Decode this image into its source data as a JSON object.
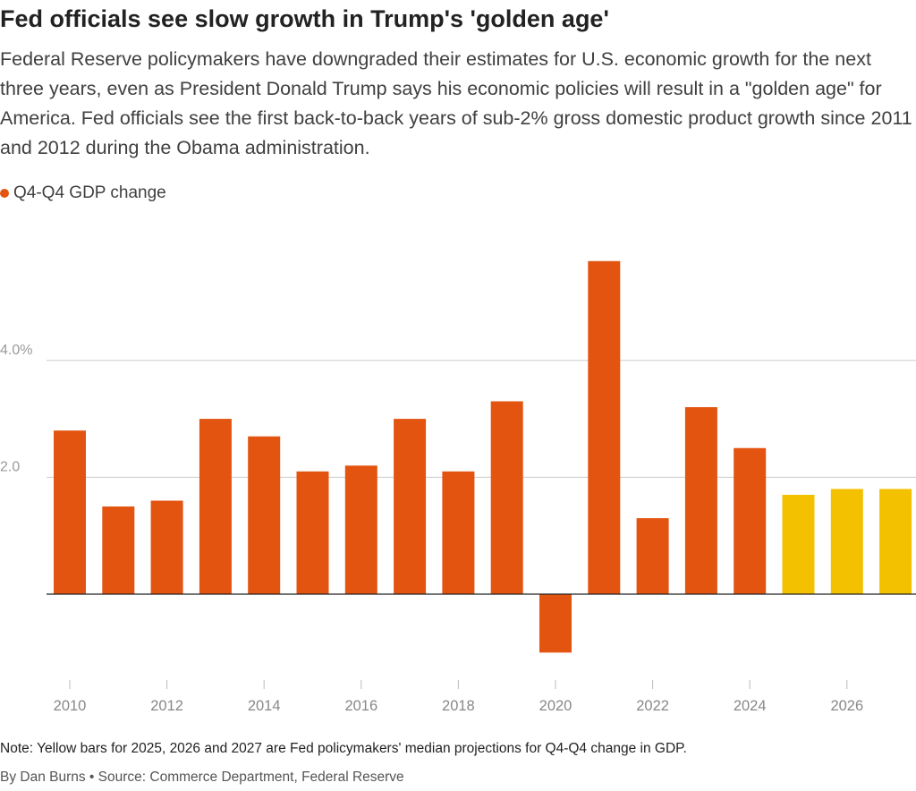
{
  "title": "Fed officials see slow growth in Trump's 'golden age'",
  "subtitle": "Federal Reserve policymakers have downgraded their estimates for U.S. economic growth for the next three years, even as President Donald Trump says his economic policies will result in a \"golden age\" for America. Fed officials see the first back-to-back years of sub-2% gross domestic product growth since 2011 and 2012 during the Obama administration.",
  "legend": {
    "label": "Q4-Q4 GDP change",
    "color": "#e35410"
  },
  "note": "Note: Yellow bars for 2025, 2026 and 2027 are Fed policymakers' median projections for Q4-Q4 change in GDP.",
  "credit": "By Dan Burns • Source: Commerce Department, Federal Reserve",
  "colors": {
    "actual": "#e35410",
    "projection": "#f4c100",
    "grid": "#cccccc",
    "baseline": "#222222"
  },
  "chart_data": {
    "type": "bar",
    "categories": [
      "2010",
      "2011",
      "2012",
      "2013",
      "2014",
      "2015",
      "2016",
      "2017",
      "2018",
      "2019",
      "2020",
      "2021",
      "2022",
      "2023",
      "2024",
      "2025",
      "2026",
      "2027"
    ],
    "values": [
      2.8,
      1.5,
      1.6,
      3.0,
      2.7,
      2.1,
      2.2,
      3.0,
      2.1,
      3.3,
      -1.0,
      5.7,
      1.3,
      3.2,
      2.5,
      1.7,
      1.8,
      1.8
    ],
    "projection": [
      false,
      false,
      false,
      false,
      false,
      false,
      false,
      false,
      false,
      false,
      false,
      false,
      false,
      false,
      false,
      true,
      true,
      true
    ],
    "x_tick_labels": [
      "2010",
      "2012",
      "2014",
      "2016",
      "2018",
      "2020",
      "2022",
      "2024",
      "2026"
    ],
    "y_ticks": [
      2.0,
      4.0
    ],
    "y_tick_labels": [
      "2.0",
      "4.0%"
    ],
    "ylim": [
      -1.4,
      5.8
    ],
    "xlabel": "",
    "ylabel": "",
    "grid": true
  }
}
